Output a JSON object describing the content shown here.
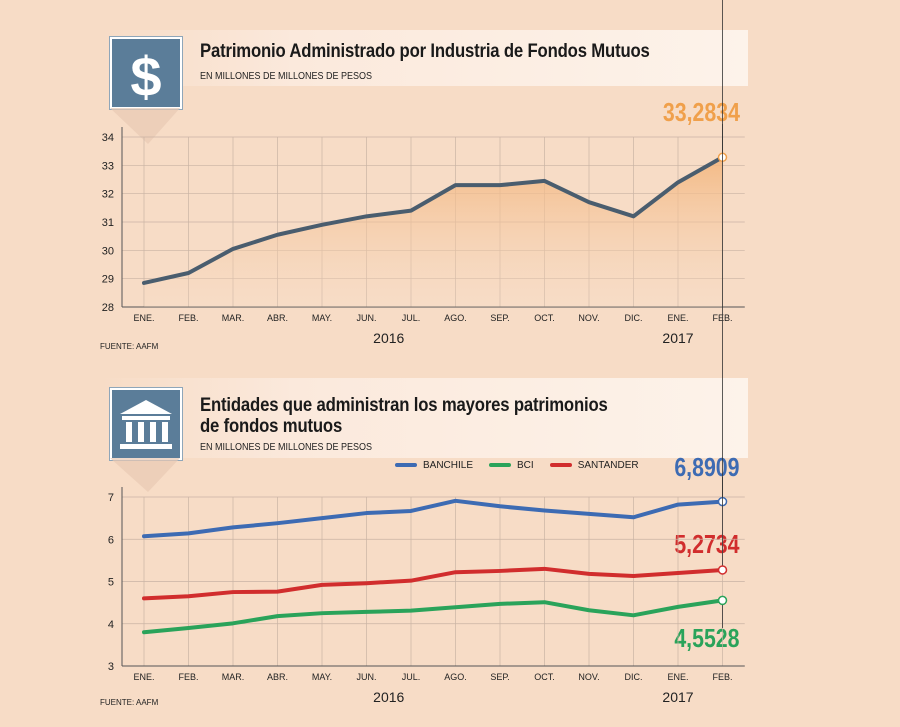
{
  "chart_data": [
    {
      "type": "area",
      "title": "Patrimonio Administrado por Industria de Fondos Mutuos",
      "subtitle": "EN MILLONES DE MILLONES DE PESOS",
      "source": "FUENTE: AAFM",
      "categories": [
        "ENE.",
        "FEB.",
        "MAR.",
        "ABR.",
        "MAY.",
        "JUN.",
        "JUL.",
        "AGO.",
        "SEP.",
        "OCT.",
        "NOV.",
        "DIC.",
        "ENE.",
        "FEB."
      ],
      "year_labels": [
        "2016",
        "2017"
      ],
      "yticks": [
        28,
        29,
        30,
        31,
        32,
        33,
        34
      ],
      "ylim": [
        28,
        34
      ],
      "grid": true,
      "series": [
        {
          "values": [
            28.85,
            29.2,
            30.05,
            30.55,
            30.9,
            31.2,
            31.4,
            32.3,
            32.3,
            32.45,
            31.7,
            31.2,
            32.4,
            33.2834
          ],
          "color": "#4a5d6e"
        }
      ],
      "highlight": {
        "label": "33,2834",
        "color": "#f0a04b"
      }
    },
    {
      "type": "line",
      "title_line1": "Entidades que administran los mayores patrimonios",
      "title_line2": "de fondos mutuos",
      "subtitle": "EN MILLONES DE MILLONES DE PESOS",
      "source": "FUENTE: AAFM",
      "categories": [
        "ENE.",
        "FEB.",
        "MAR.",
        "ABR.",
        "MAY.",
        "JUN.",
        "JUL.",
        "AGO.",
        "SEP.",
        "OCT.",
        "NOV.",
        "DIC.",
        "ENE.",
        "FEB."
      ],
      "year_labels": [
        "2016",
        "2017"
      ],
      "yticks": [
        3,
        4,
        5,
        6,
        7
      ],
      "ylim": [
        3,
        7
      ],
      "grid": true,
      "legend_position": "top",
      "series": [
        {
          "name": "BANCHILE",
          "color": "#3d6bb3",
          "values": [
            6.07,
            6.14,
            6.28,
            6.38,
            6.5,
            6.62,
            6.67,
            6.91,
            6.78,
            6.68,
            6.6,
            6.52,
            6.82,
            6.8909
          ],
          "label": "6,8909"
        },
        {
          "name": "BCI",
          "color": "#2aa35a",
          "values": [
            3.8,
            3.9,
            4.01,
            4.18,
            4.25,
            4.28,
            4.31,
            4.39,
            4.47,
            4.51,
            4.32,
            4.2,
            4.4,
            4.5528
          ],
          "label": "4,5528"
        },
        {
          "name": "SANTANDER",
          "color": "#d12d2d",
          "values": [
            4.6,
            4.65,
            4.75,
            4.76,
            4.92,
            4.96,
            5.02,
            5.22,
            5.25,
            5.3,
            5.18,
            5.13,
            5.2,
            5.2734
          ],
          "label": "5,2734"
        }
      ]
    }
  ],
  "icons": {
    "top": "dollar-icon",
    "bottom": "bank-building-icon"
  }
}
